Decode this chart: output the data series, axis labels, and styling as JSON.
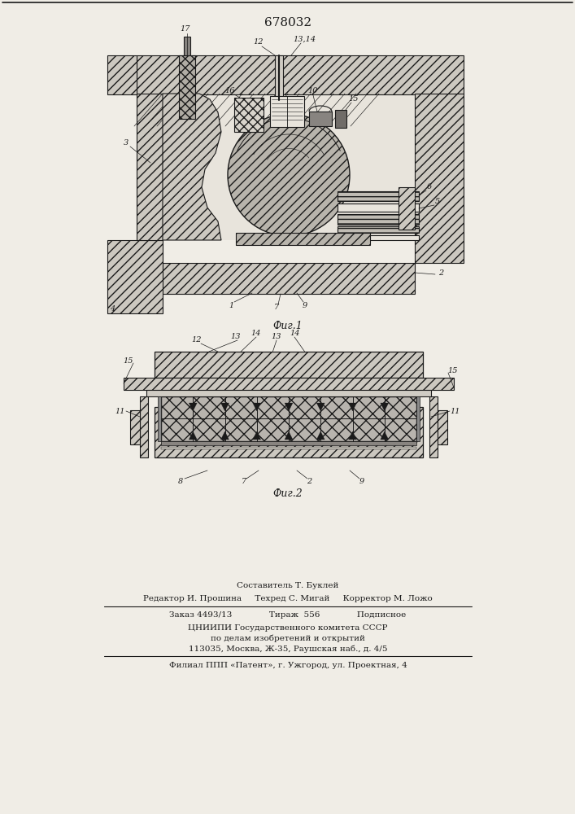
{
  "title": "678032",
  "fig1_caption": "Фиг.1",
  "fig2_caption": "Фиг.2",
  "bg_color": "#f0ede6",
  "line_color": "#1a1a1a",
  "footer_line1": "Составитель Т. Буклей",
  "footer_line2": "Редактор И. Прошина     Техред С. Мигай     Корректор М. Ложо",
  "footer_line3": "Заказ 4493/13              Тираж  556              Подписное",
  "footer_line4": "ЦНИИПИ Государственного комитета СССР",
  "footer_line5": "по делам изобретений и открытий",
  "footer_line6": "113035, Москва, Ж-35, Раушская наб., д. 4/5",
  "footer_line7": "Филиал ППП «Патент», г. Ужгород, ул. Проектная, 4"
}
